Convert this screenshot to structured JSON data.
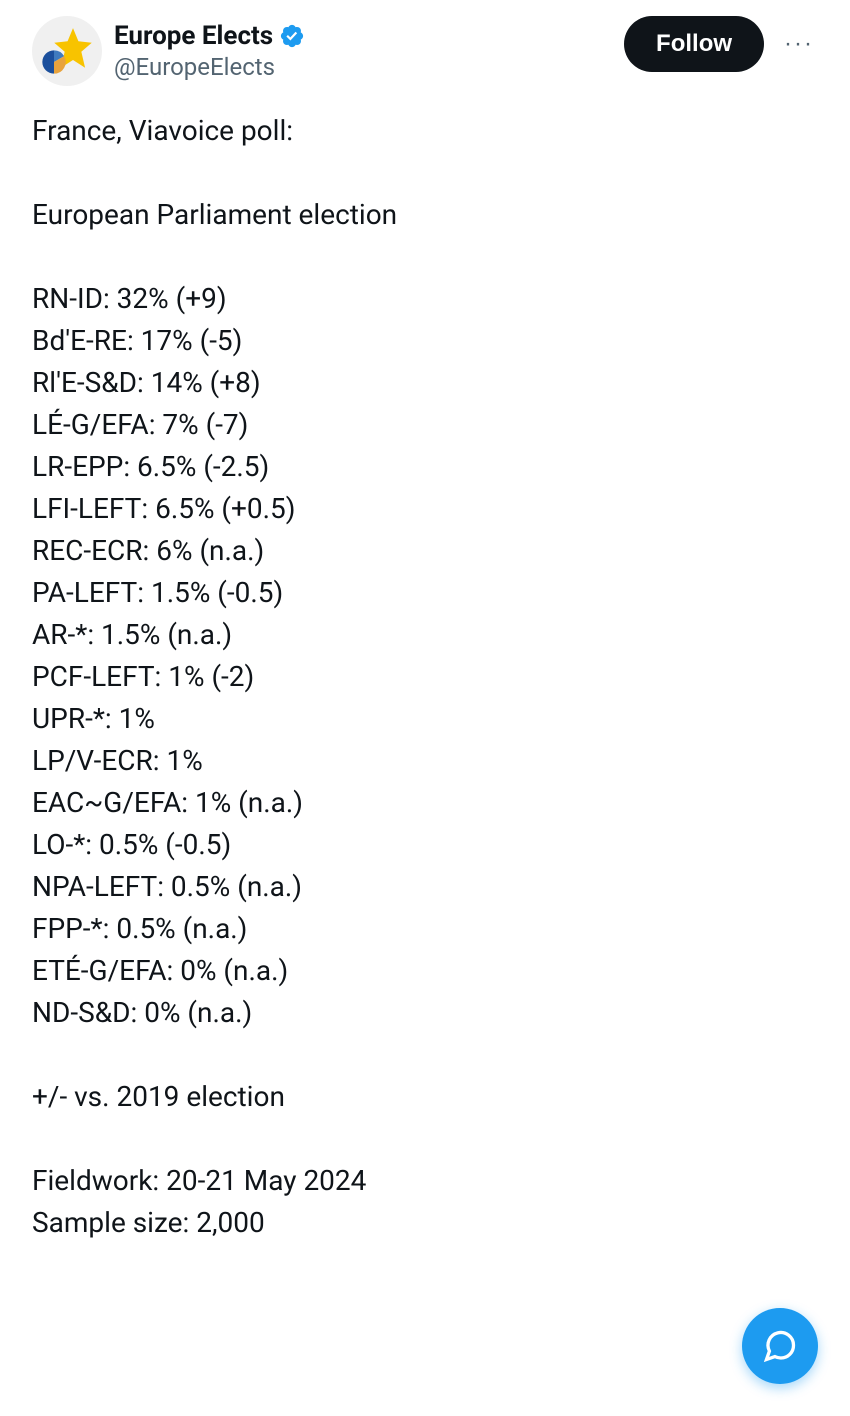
{
  "user": {
    "display_name": "Europe Elects",
    "handle": "@EuropeElects",
    "verified": true,
    "verified_color": "#1d9bf0",
    "avatar_bg": "#f0f0f0",
    "avatar_star_color": "#f8c300",
    "avatar_pie_colors": [
      "#1b4f9c",
      "#e8a33d",
      "#3f7bbf"
    ]
  },
  "actions": {
    "follow_label": "Follow",
    "more_label": "···"
  },
  "tweet": {
    "intro_lines": [
      "France, Viavoice poll:",
      "",
      "European Parliament election",
      ""
    ],
    "poll_results": [
      {
        "party": "RN-ID",
        "pct": "32%",
        "change": "(+9)"
      },
      {
        "party": "Bd'E-RE",
        "pct": "17%",
        "change": "(-5)"
      },
      {
        "party": "Rl'E-S&D",
        "pct": "14%",
        "change": "(+8)"
      },
      {
        "party": "LÉ-G/EFA",
        "pct": "7%",
        "change": "(-7)"
      },
      {
        "party": "LR-EPP",
        "pct": "6.5%",
        "change": "(-2.5)"
      },
      {
        "party": "LFI-LEFT",
        "pct": "6.5%",
        "change": "(+0.5)"
      },
      {
        "party": "REC-ECR",
        "pct": "6%",
        "change": "(n.a.)"
      },
      {
        "party": "PA-LEFT",
        "pct": "1.5%",
        "change": "(-0.5)"
      },
      {
        "party": "AR-*",
        "pct": "1.5%",
        "change": "(n.a.)"
      },
      {
        "party": "PCF-LEFT",
        "pct": "1%",
        "change": "(-2)"
      },
      {
        "party": "UPR-*",
        "pct": "1%",
        "change": ""
      },
      {
        "party": "LP/V-ECR",
        "pct": "1%",
        "change": ""
      },
      {
        "party": "EAC~G/EFA",
        "pct": "1%",
        "change": "(n.a.)"
      },
      {
        "party": "LO-*",
        "pct": "0.5%",
        "change": "(-0.5)"
      },
      {
        "party": "NPA-LEFT",
        "pct": "0.5%",
        "change": "(n.a.)"
      },
      {
        "party": "FPP-*",
        "pct": "0.5%",
        "change": "(n.a.)"
      },
      {
        "party": "ETÉ-G/EFA",
        "pct": "0%",
        "change": "(n.a.)"
      },
      {
        "party": "ND-S&D",
        "pct": "0%",
        "change": "(n.a.)"
      }
    ],
    "footer_lines": [
      "",
      "+/- vs. 2019 election",
      "",
      "Fieldwork: 20-21 May 2024",
      "Sample size: 2,000"
    ]
  },
  "colors": {
    "text": "#0f1419",
    "muted": "#536471",
    "accent": "#1d9bf0",
    "button_bg": "#0f1419",
    "button_text": "#ffffff",
    "background": "#ffffff"
  }
}
